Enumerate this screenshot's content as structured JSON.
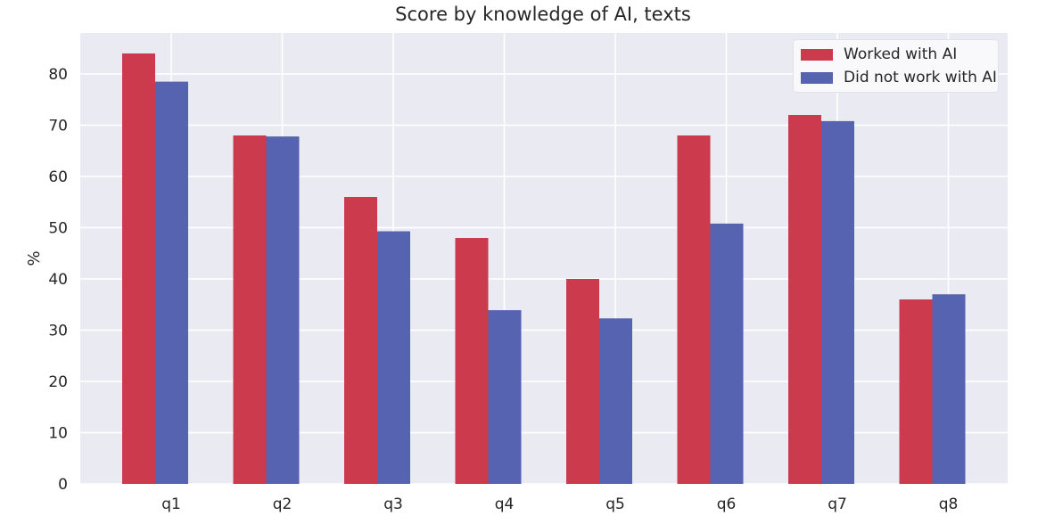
{
  "chart_data": {
    "type": "bar",
    "title": "Score by knowledge of AI, texts",
    "xlabel": "",
    "ylabel": "%",
    "categories": [
      "q1",
      "q2",
      "q3",
      "q4",
      "q5",
      "q6",
      "q7",
      "q8"
    ],
    "series": [
      {
        "name": "Worked with AI",
        "color": "#cc3a4e",
        "values": [
          84,
          68,
          56,
          48,
          40,
          68,
          72,
          36
        ]
      },
      {
        "name": "Did not work with AI",
        "color": "#5563b0",
        "values": [
          78.5,
          67.8,
          49.3,
          33.9,
          32.3,
          50.8,
          70.8,
          37
        ]
      }
    ],
    "ylim": [
      0,
      88
    ],
    "yticks": [
      0,
      10,
      20,
      30,
      40,
      50,
      60,
      70,
      80
    ],
    "grid": true,
    "legend_position": "top-right",
    "plot_background": "#eaeaf2"
  }
}
